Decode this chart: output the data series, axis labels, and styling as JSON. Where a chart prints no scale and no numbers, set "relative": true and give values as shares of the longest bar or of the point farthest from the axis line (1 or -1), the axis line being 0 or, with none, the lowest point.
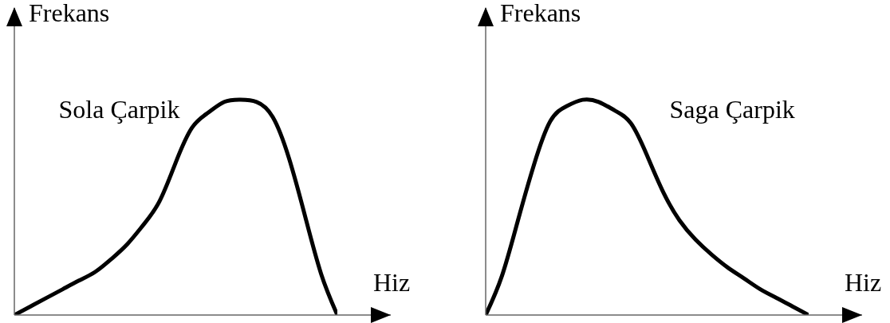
{
  "chart_data": [
    {
      "type": "line",
      "xlabel": "Hiz",
      "ylabel": "Frekans",
      "annotations": [
        "Sola Çarpik"
      ],
      "relative": true,
      "categories": [
        null,
        null,
        null,
        null,
        null,
        null,
        null,
        null,
        null,
        null,
        null,
        null,
        null,
        null,
        null,
        null,
        null,
        null,
        null,
        null,
        null
      ],
      "series": [
        {
          "color": "#000000",
          "values": [
            0,
            0.04,
            0.08,
            0.12,
            0.16,
            0.2,
            0.26,
            0.33,
            0.42,
            0.53,
            0.71,
            0.87,
            0.94,
            0.99,
            1,
            0.99,
            0.92,
            0.73,
            0.46,
            0.19,
            0
          ]
        }
      ]
    },
    {
      "type": "line",
      "xlabel": "Hiz",
      "ylabel": "Frekans",
      "annotations": [
        "Saga Çarpik"
      ],
      "relative": true,
      "categories": [
        null,
        null,
        null,
        null,
        null,
        null,
        null,
        null,
        null,
        null,
        null,
        null,
        null,
        null,
        null,
        null,
        null,
        null,
        null,
        null,
        null
      ],
      "series": [
        {
          "color": "#000000",
          "values": [
            0,
            0.18,
            0.44,
            0.7,
            0.9,
            0.97,
            1,
            0.99,
            0.95,
            0.89,
            0.74,
            0.57,
            0.44,
            0.35,
            0.28,
            0.22,
            0.17,
            0.12,
            0.08,
            0.04,
            0
          ]
        }
      ]
    }
  ]
}
